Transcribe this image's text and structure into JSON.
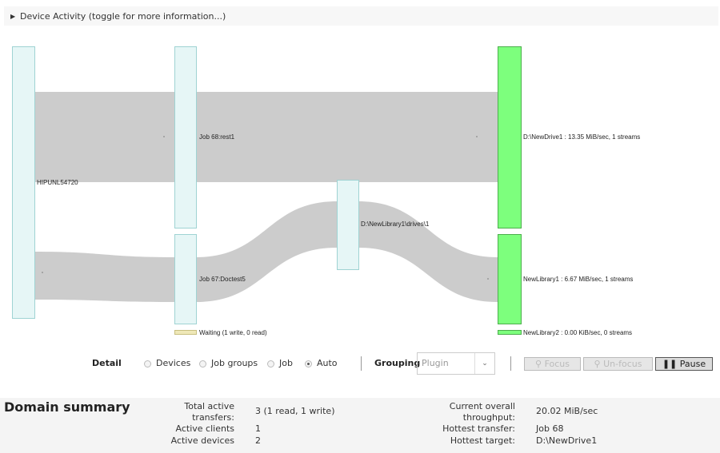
{
  "header": {
    "title": "Device Activity (toggle for more information...)"
  },
  "sankey": {
    "nodes": {
      "client": "HIPUNL54720",
      "job68": "Job 68:rest1",
      "job67": "Job 67:Doctest5",
      "drive_lib": "D:\\NewLibrary1\\drives\\1",
      "newdrive1": "D:\\NewDrive1 : 13.35 MiB/sec, 1 streams",
      "newlibrary1": "NewLibrary1 : 6.67 MiB/sec, 1 streams",
      "waiting": "Waiting (1 write, 0 read)",
      "newlibrary2": "NewLibrary2 : 0.00 KiB/sec, 0 streams"
    },
    "colors": {
      "source": "#e6f6f6",
      "target": "#7dff7d",
      "link": "#cccccc",
      "waiting": "#efe8b8"
    }
  },
  "controls": {
    "detail_label": "Detail",
    "options": [
      {
        "label": "Devices",
        "checked": false
      },
      {
        "label": "Job groups",
        "checked": false
      },
      {
        "label": "Job",
        "checked": false
      },
      {
        "label": "Auto",
        "checked": true
      }
    ],
    "grouping_label": "Grouping",
    "grouping_value": "Plugin",
    "focus": "Focus",
    "unfocus": "Un-focus",
    "pause": "Pause"
  },
  "summary": {
    "title": "Domain summary",
    "left": [
      {
        "k": "Total active transfers:",
        "v": "3 (1 read, 1 write)"
      },
      {
        "k": "Active clients",
        "v": "1"
      },
      {
        "k": "Active devices",
        "v": "2"
      }
    ],
    "right": [
      {
        "k": "Current overall throughput:",
        "v": "20.02 MiB/sec"
      },
      {
        "k": "Hottest transfer:",
        "v": "Job 68"
      },
      {
        "k": "Hottest target:",
        "v": "D:\\NewDrive1"
      }
    ]
  }
}
